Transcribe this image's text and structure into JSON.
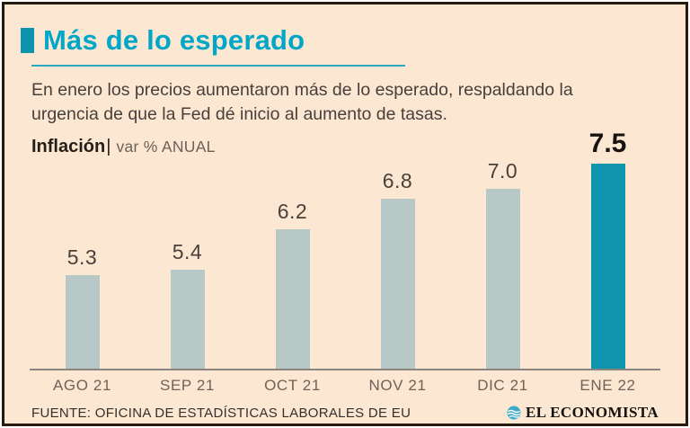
{
  "header": {
    "title": "Más de lo esperado",
    "subtitle": "En enero los precios aumentaron más de lo esperado, respaldando la urgencia de que la Fed dé inicio al aumento de tasas."
  },
  "chart_header": {
    "label": "Inflación",
    "separator": "|",
    "units": "var % ANUAL"
  },
  "chart_data": {
    "type": "bar",
    "title": "Inflación",
    "units_label": "var % ANUAL",
    "categories": [
      "AGO 21",
      "SEP 21",
      "OCT 21",
      "NOV 21",
      "DIC 21",
      "ENE 22"
    ],
    "values": [
      5.3,
      5.4,
      6.2,
      6.8,
      7.0,
      7.5
    ],
    "value_decimals": 1,
    "highlight_index": 5,
    "bar_color": "#b7c8c7",
    "highlight_color": "#0e95ad",
    "ylim": [
      3.45,
      8.0
    ],
    "grid": false,
    "legend": false,
    "value_labels_position": "above-bars"
  },
  "footer": {
    "source": "FUENTE: OFICINA DE ESTADÍSTICAS LABORALES DE EU",
    "brand": "EL ECONOMISTA"
  },
  "colors": {
    "accent_title": "#02a7c7",
    "accent_marker": "#0d93ad",
    "background": "#fce7d3",
    "frame_border": "#271b10",
    "bar": "#b7c8c7",
    "bar_highlight": "#0e95ad",
    "logo_icon": "#3ba9c9"
  }
}
